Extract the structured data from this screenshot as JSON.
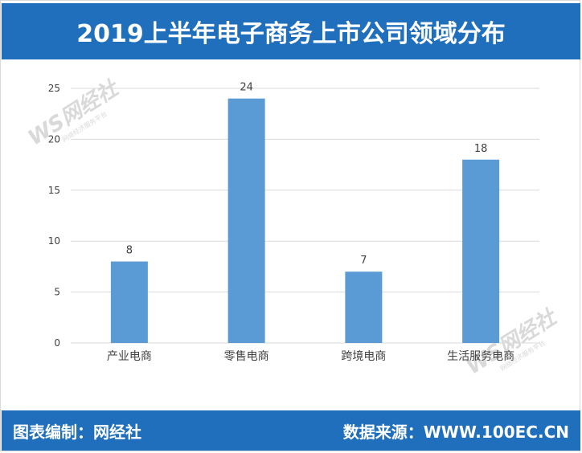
{
  "header": {
    "title": "2019上半年电子商务上市公司领域分布"
  },
  "footer": {
    "left": "图表编制：网经社",
    "right": "数据来源：WWW.100EC.CN"
  },
  "watermark": {
    "logo": "WS网经社",
    "sub": "网络经济服务平台"
  },
  "colors": {
    "bar": "#5b9bd5",
    "header_bg": "#1f6fbd",
    "grid": "#d9d9d9"
  },
  "chart_data": {
    "type": "bar",
    "categories": [
      "产业电商",
      "零售电商",
      "跨境电商",
      "生活服务电商"
    ],
    "values": [
      8,
      24,
      7,
      18
    ],
    "yticks": [
      0,
      5,
      10,
      15,
      20,
      25
    ],
    "ylim": [
      0,
      25
    ],
    "grid": true,
    "data_labels": true
  }
}
